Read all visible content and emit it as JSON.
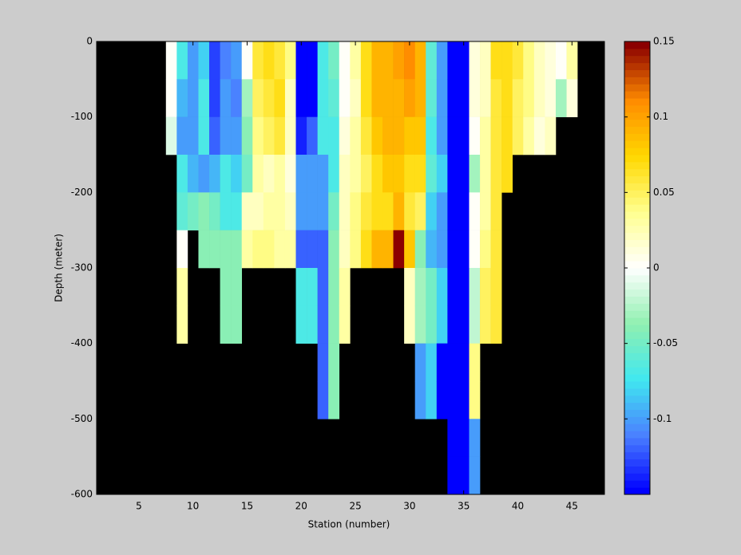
{
  "chart_data": {
    "type": "heatmap",
    "xlabel": "Station (number)",
    "ylabel": "Depth (meter)",
    "xlim": [
      1.1,
      48
    ],
    "ylim": [
      -600,
      0
    ],
    "xticks": [
      5,
      10,
      15,
      20,
      25,
      30,
      35,
      40,
      45
    ],
    "yticks": [
      0,
      -100,
      -200,
      -300,
      -400,
      -500,
      -600
    ],
    "clim": [
      -0.15,
      0.15
    ],
    "cticks": [
      -0.1,
      -0.05,
      0,
      0.05,
      0.1,
      0.15
    ],
    "colormap": [
      "#0000ff",
      "#4a80ff",
      "#40e8f0",
      "#90f0b0",
      "#ffffff",
      "#ffff90",
      "#ffd800",
      "#ff8c00",
      "#8b0000"
    ],
    "background": "#000000",
    "x": [
      8,
      9,
      10,
      11,
      12,
      13,
      14,
      15,
      16,
      17,
      18,
      19,
      20,
      21,
      22,
      23,
      24,
      25,
      26,
      27,
      28,
      29,
      30,
      31,
      32,
      33,
      34,
      35,
      36,
      37,
      38,
      39,
      40,
      41,
      42,
      43,
      44,
      45
    ],
    "y": [
      0,
      -50,
      -100,
      -150,
      -200,
      -250,
      -300,
      -350,
      -400,
      -450,
      -500,
      -550
    ],
    "z": [
      [
        0.0,
        0.0,
        -0.01,
        null,
        null,
        null,
        null,
        null,
        null,
        null,
        null,
        null
      ],
      [
        -0.07,
        -0.09,
        -0.1,
        -0.07,
        -0.06,
        0.0,
        0.03,
        0.03,
        null,
        null,
        null,
        null
      ],
      [
        -0.1,
        -0.1,
        -0.1,
        -0.09,
        -0.05,
        null,
        null,
        null,
        null,
        null,
        null,
        null
      ],
      [
        -0.08,
        -0.07,
        -0.07,
        -0.1,
        -0.04,
        -0.04,
        null,
        null,
        null,
        null,
        null,
        null
      ],
      [
        -0.13,
        -0.13,
        -0.12,
        -0.09,
        -0.05,
        -0.04,
        null,
        null,
        null,
        null,
        null,
        null
      ],
      [
        -0.11,
        -0.1,
        -0.1,
        -0.07,
        -0.07,
        -0.04,
        -0.04,
        -0.04,
        null,
        null,
        null,
        null
      ],
      [
        -0.1,
        -0.11,
        -0.1,
        -0.08,
        -0.07,
        -0.04,
        -0.04,
        -0.04,
        null,
        null,
        null,
        null
      ],
      [
        0.0,
        -0.03,
        -0.04,
        -0.05,
        0.02,
        0.03,
        null,
        null,
        null,
        null,
        null,
        null
      ],
      [
        0.06,
        0.05,
        0.04,
        0.03,
        0.02,
        0.04,
        null,
        null,
        null,
        null,
        null,
        null
      ],
      [
        0.07,
        0.06,
        0.05,
        0.02,
        0.03,
        0.04,
        null,
        null,
        null,
        null,
        null,
        null
      ],
      [
        0.06,
        0.07,
        0.06,
        0.03,
        0.03,
        0.03,
        null,
        null,
        null,
        null,
        null,
        null
      ],
      [
        0.04,
        0.02,
        0.02,
        0.01,
        0.02,
        0.03,
        null,
        null,
        null,
        null,
        null,
        null
      ],
      [
        -0.15,
        -0.15,
        -0.14,
        -0.1,
        -0.1,
        -0.12,
        -0.07,
        -0.07,
        null,
        null,
        null,
        null
      ],
      [
        -0.15,
        -0.15,
        -0.12,
        -0.1,
        -0.1,
        -0.12,
        -0.07,
        -0.07,
        null,
        null,
        null,
        null
      ],
      [
        -0.07,
        -0.07,
        -0.07,
        -0.1,
        -0.1,
        -0.12,
        -0.12,
        -0.12,
        -0.12,
        -0.12,
        null,
        null
      ],
      [
        -0.05,
        -0.06,
        -0.07,
        -0.07,
        -0.05,
        -0.04,
        -0.04,
        -0.04,
        -0.04,
        -0.04,
        null,
        null
      ],
      [
        0.0,
        0.0,
        0.01,
        0.02,
        0.02,
        0.02,
        0.03,
        0.03,
        null,
        null,
        null,
        null
      ],
      [
        0.03,
        0.02,
        0.03,
        0.03,
        0.04,
        0.04,
        null,
        null,
        null,
        null,
        null,
        null
      ],
      [
        0.07,
        0.07,
        0.06,
        0.05,
        0.06,
        0.07,
        null,
        null,
        null,
        null,
        null,
        null
      ],
      [
        0.09,
        0.09,
        0.08,
        0.07,
        0.07,
        0.09,
        null,
        null,
        null,
        null,
        null,
        null
      ],
      [
        0.09,
        0.09,
        0.09,
        0.08,
        0.07,
        0.09,
        null,
        null,
        null,
        null,
        null,
        null
      ],
      [
        0.1,
        0.09,
        0.09,
        0.08,
        0.09,
        0.15,
        null,
        null,
        null,
        null,
        null,
        null
      ],
      [
        0.11,
        0.1,
        0.08,
        0.07,
        0.06,
        0.08,
        0.02,
        0.02,
        null,
        null,
        null,
        null
      ],
      [
        0.09,
        0.09,
        0.08,
        0.07,
        0.05,
        -0.04,
        -0.03,
        -0.03,
        -0.1,
        -0.1,
        null,
        null
      ],
      [
        -0.06,
        -0.06,
        -0.07,
        -0.06,
        -0.08,
        -0.09,
        -0.05,
        -0.05,
        -0.08,
        -0.08,
        null,
        null
      ],
      [
        -0.1,
        -0.1,
        -0.1,
        -0.08,
        -0.1,
        -0.1,
        -0.08,
        -0.08,
        -0.15,
        -0.15,
        null,
        null
      ],
      [
        -0.15,
        -0.15,
        -0.15,
        -0.15,
        -0.15,
        -0.15,
        -0.15,
        -0.15,
        -0.15,
        -0.15,
        -0.15,
        -0.15
      ],
      [
        -0.15,
        -0.15,
        -0.15,
        -0.15,
        -0.15,
        -0.15,
        -0.15,
        -0.15,
        -0.15,
        -0.15,
        -0.15,
        -0.15
      ],
      [
        0.01,
        0.01,
        0.0,
        -0.03,
        0.0,
        0.0,
        -0.02,
        -0.02,
        0.04,
        0.04,
        -0.1,
        -0.1
      ],
      [
        0.02,
        0.02,
        0.03,
        0.03,
        0.03,
        0.04,
        0.05,
        0.05,
        null,
        null,
        null,
        null
      ],
      [
        0.07,
        0.06,
        0.06,
        0.06,
        0.06,
        0.06,
        0.06,
        0.06,
        null,
        null,
        null,
        null
      ],
      [
        0.07,
        0.07,
        0.07,
        0.07,
        null,
        null,
        null,
        null,
        null,
        null,
        null,
        null
      ],
      [
        0.06,
        0.05,
        0.05,
        null,
        null,
        null,
        null,
        null,
        null,
        null,
        null,
        null
      ],
      [
        0.04,
        0.04,
        0.03,
        null,
        null,
        null,
        null,
        null,
        null,
        null,
        null,
        null
      ],
      [
        0.02,
        0.02,
        0.01,
        null,
        null,
        null,
        null,
        null,
        null,
        null,
        null,
        null
      ],
      [
        0.01,
        0.01,
        0.02,
        null,
        null,
        null,
        null,
        null,
        null,
        null,
        null,
        null
      ],
      [
        0.0,
        -0.03,
        null,
        null,
        null,
        null,
        null,
        null,
        null,
        null,
        null,
        null
      ],
      [
        0.03,
        0.01,
        null,
        null,
        null,
        null,
        null,
        null,
        null,
        null,
        null,
        null
      ]
    ]
  }
}
